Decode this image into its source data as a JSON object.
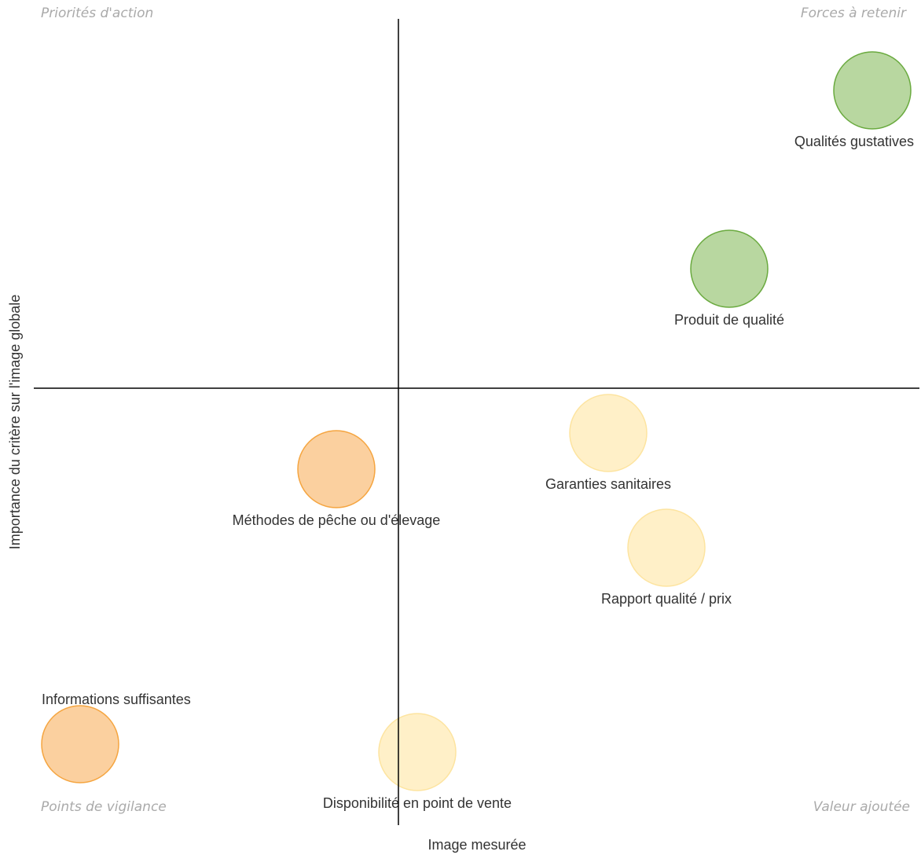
{
  "chart_data": {
    "type": "scatter",
    "xlabel": "Image mesurée",
    "ylabel": "Importance du critère sur l'image globale",
    "quadrant_labels": {
      "top_left": "Priorités d'action",
      "top_right": "Forces à retenir",
      "bottom_left": "Points de vigilance",
      "bottom_right": "Valeur ajoutée"
    },
    "xlim": [
      -46,
      66
    ],
    "ylim": [
      -55,
      47
    ],
    "labels": [
      "Qualités gustatives",
      "Produit de qualité",
      "Garanties sanitaires",
      "Rapport qualité / prix",
      "Méthodes de pêche ou d'élevage",
      "Informations suffisantes",
      "Disponibilité en point de vente"
    ],
    "x": [
      60.3,
      42.1,
      26.7,
      34.1,
      -7.9,
      -40.5,
      2.4
    ],
    "y": [
      37.9,
      15.2,
      -5.7,
      -20.3,
      -10.3,
      -45.3,
      -46.3
    ],
    "colors": [
      "#b8d7a0",
      "#b8d7a0",
      "#fff0c8",
      "#fff0c8",
      "#fbd09f",
      "#fbd09f",
      "#fff0c8"
    ],
    "stroke_colors": [
      "#6aaa3f",
      "#6aaa3f",
      "#fde4a0",
      "#fde4a0",
      "#f5a540",
      "#f5a540",
      "#fde4a0"
    ]
  }
}
